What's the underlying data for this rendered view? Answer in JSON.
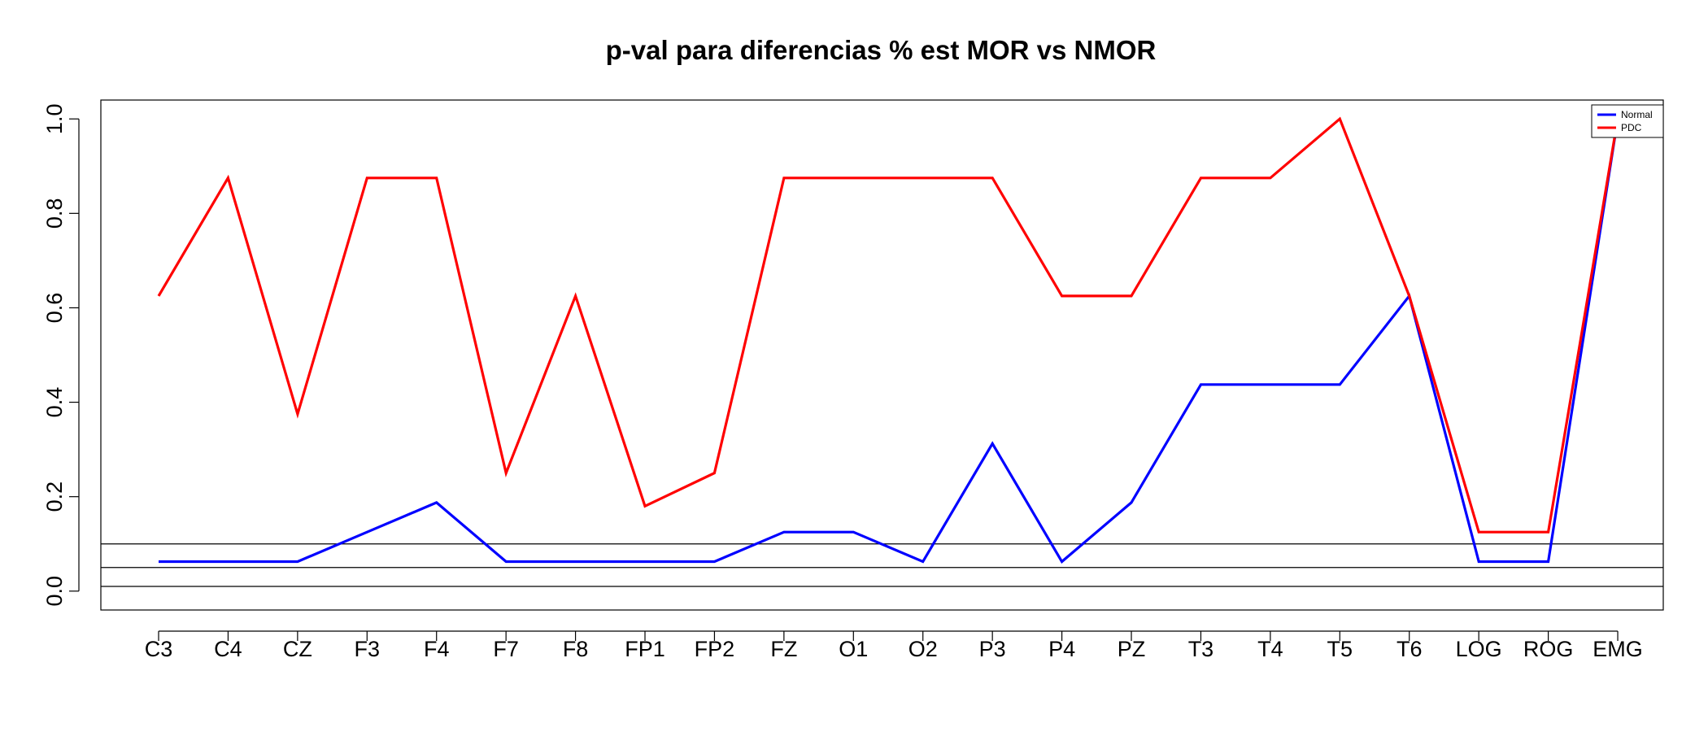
{
  "chart_data": {
    "type": "line",
    "title": "p-val para diferencias % est MOR vs NMOR",
    "xlabel": "",
    "ylabel": "",
    "categories": [
      "C3",
      "C4",
      "CZ",
      "F3",
      "F4",
      "F7",
      "F8",
      "FP1",
      "FP2",
      "FZ",
      "O1",
      "O2",
      "P3",
      "P4",
      "PZ",
      "T3",
      "T4",
      "T5",
      "T6",
      "LOG",
      "ROG",
      "EMG"
    ],
    "series": [
      {
        "name": "Normal",
        "color": "#0000ff",
        "values": [
          0.0625,
          0.0625,
          0.0625,
          0.125,
          0.1875,
          0.0625,
          0.0625,
          0.0625,
          0.0625,
          0.125,
          0.125,
          0.0625,
          0.3125,
          0.0625,
          0.1875,
          0.4375,
          0.4375,
          0.4375,
          0.625,
          0.0625,
          0.0625,
          1.0
        ]
      },
      {
        "name": "PDC",
        "color": "#ff0000",
        "values": [
          0.625,
          0.875,
          0.375,
          0.875,
          0.875,
          0.25,
          0.625,
          0.18,
          0.25,
          0.875,
          0.875,
          0.875,
          0.875,
          0.625,
          0.625,
          0.875,
          0.875,
          1.0,
          0.625,
          0.125,
          0.125,
          1.0
        ]
      }
    ],
    "y_ticks": [
      "0.0",
      "0.2",
      "0.4",
      "0.6",
      "0.8",
      "1.0"
    ],
    "ylim": [
      -0.04,
      1.04
    ],
    "reference_lines": [
      0.01,
      0.05,
      0.1
    ],
    "grid": false,
    "legend_position": "top-right"
  }
}
